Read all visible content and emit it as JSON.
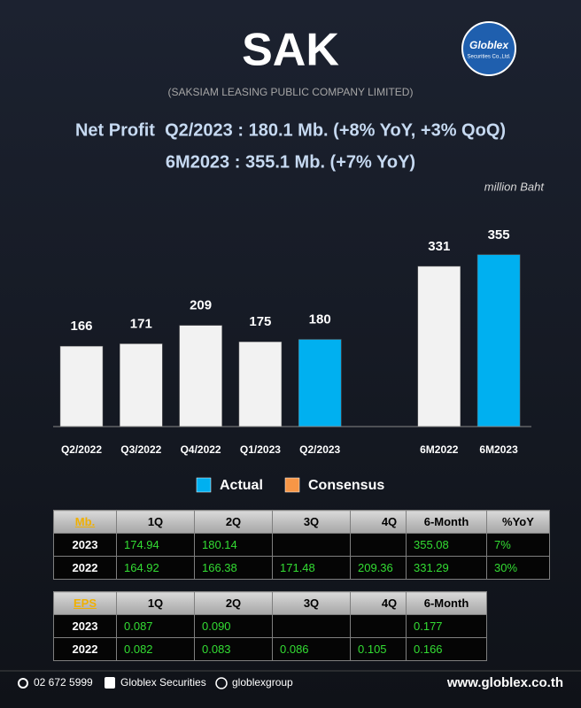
{
  "header": {
    "title": "SAK",
    "subtitle": "(SAKSIAM LEASING PUBLIC COMPANY LIMITED)",
    "logo": "Globlex",
    "logo_sub": "Securities Co.,Ltd.",
    "headline": [
      "Net Profit  Q2/2023 : 180.1 Mb. (+8% YoY, +3% QoQ)",
      "6M2023 : 355.1 Mb. (+7% YoY)"
    ]
  },
  "chart_data": {
    "type": "bar",
    "unit": "million Baht",
    "categories": [
      "Q2/2022",
      "Q3/2022",
      "Q4/2022",
      "Q1/2023",
      "Q2/2023",
      null,
      "6M2022",
      "6M2023"
    ],
    "values": [
      166,
      171,
      209,
      175,
      180,
      null,
      331,
      355
    ],
    "colors": [
      "#f2f2f2",
      "#f2f2f2",
      "#f2f2f2",
      "#f2f2f2",
      "#00b0f0",
      null,
      "#f2f2f2",
      "#00b0f0"
    ],
    "legend": [
      {
        "name": "Actual",
        "color": "#00b0f0"
      },
      {
        "name": "Consensus",
        "color": "#f79646"
      }
    ]
  },
  "tables": {
    "profit": {
      "header": [
        "Mb.",
        "1Q",
        "2Q",
        "3Q",
        "4Q"
      ],
      "rows": [
        [
          "2023",
          "174.94",
          "180.14",
          null,
          null
        ],
        [
          "2022",
          "164.92",
          "166.38",
          "171.48",
          "209.36"
        ]
      ]
    },
    "profit_6m": {
      "header": [
        "6-Month",
        "%YoY"
      ],
      "rows": [
        [
          "355.08",
          "7%"
        ],
        [
          "331.29",
          "30%"
        ]
      ]
    },
    "eps": {
      "header": [
        "EPS",
        "1Q",
        "2Q",
        "3Q",
        "4Q"
      ],
      "rows": [
        [
          "2023",
          "0.087",
          "0.090",
          null,
          null
        ],
        [
          "2022",
          "0.082",
          "0.083",
          "0.086",
          "0.105"
        ]
      ]
    },
    "eps_6m": {
      "header": [
        "6-Month"
      ],
      "rows": [
        [
          "0.177"
        ],
        [
          "0.166"
        ]
      ]
    }
  },
  "footer": {
    "phone": "02 672 5999",
    "facebook": "Globlex Securities",
    "telegram": "globlexgroup",
    "website": "www.globlex.co.th"
  }
}
